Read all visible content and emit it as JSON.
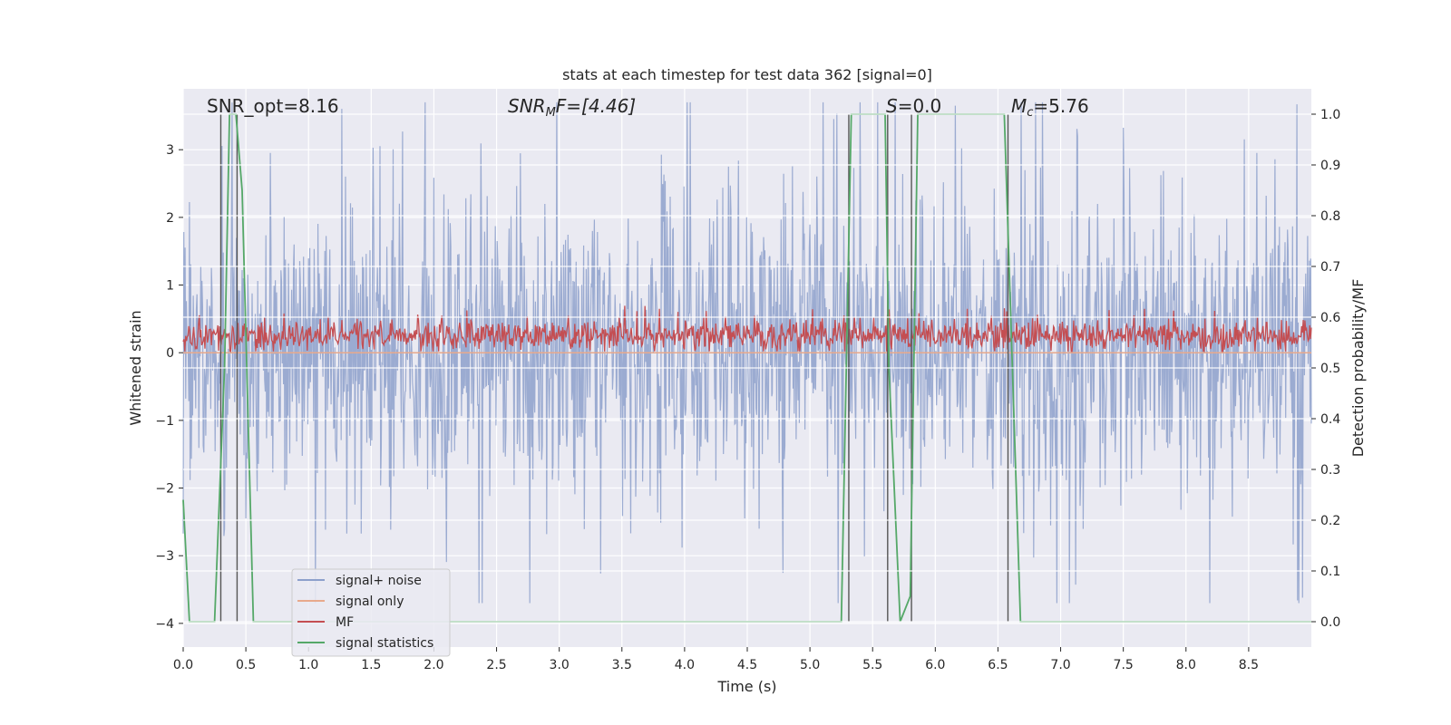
{
  "chart_data": {
    "type": "line",
    "title": "stats at each timestep for test data 362 [signal=0]",
    "xlabel": "Time (s)",
    "ylabel": "Whitened strain",
    "y2label": "Detection probability/MF",
    "xlim": [
      0.0,
      9.0
    ],
    "ylim": [
      -4.35,
      3.9
    ],
    "y2lim": [
      -0.05,
      1.05
    ],
    "x_ticks": [
      "0.0",
      "0.5",
      "1.0",
      "1.5",
      "2.0",
      "2.5",
      "3.0",
      "3.5",
      "4.0",
      "4.5",
      "5.0",
      "5.5",
      "6.0",
      "6.5",
      "7.0",
      "7.5",
      "8.0",
      "8.5"
    ],
    "y_ticks": [
      "3",
      "2",
      "1",
      "0",
      "−1",
      "−2",
      "−3",
      "−4"
    ],
    "y2_ticks": [
      "1.0",
      "0.9",
      "0.8",
      "0.7",
      "0.6",
      "0.5",
      "0.4",
      "0.3",
      "0.2",
      "0.1",
      "0.0"
    ],
    "grid": true,
    "annotations": {
      "snr_opt": "SNR_opt=8.16",
      "snr_mf_name": "SNR",
      "snr_mf_sub": "M",
      "snr_mf_rest": "F=[4.46]",
      "s_name": "S",
      "s_rest": "=0.0",
      "mc_name": "M",
      "mc_sub": "c",
      "mc_rest": "=5.76"
    },
    "series": [
      {
        "name": "signal+ noise",
        "color": "#8da0cb",
        "style": "noise band, roughly ±1 core with spikes to ±3.7",
        "amplitude_core": 1.2,
        "amplitude_peak": 3.7
      },
      {
        "name": "signal only",
        "color": "#e8a98c",
        "values_constant": 0.0
      },
      {
        "name": "MF",
        "color": "#c44e52",
        "baseline": 0.25,
        "amplitude": 0.25,
        "peak": 1.0
      },
      {
        "name": "signal statistics",
        "color": "#55a868",
        "axis": "right",
        "x": [
          0.0,
          0.05,
          0.25,
          0.33,
          0.37,
          0.42,
          0.47,
          0.56,
          5.25,
          5.33,
          5.6,
          5.63,
          5.72,
          5.8,
          5.86,
          6.55,
          6.68,
          9.0
        ],
        "y": [
          0.24,
          0.0,
          0.0,
          0.5,
          1.0,
          1.0,
          0.85,
          0.0,
          0.0,
          1.0,
          1.0,
          0.5,
          0.0,
          0.05,
          1.0,
          1.0,
          0.0,
          0.0
        ]
      }
    ],
    "vertical_lines_x": [
      0.3,
      0.43,
      5.31,
      5.62,
      5.81,
      6.58
    ],
    "legend_location": "lower-left"
  }
}
